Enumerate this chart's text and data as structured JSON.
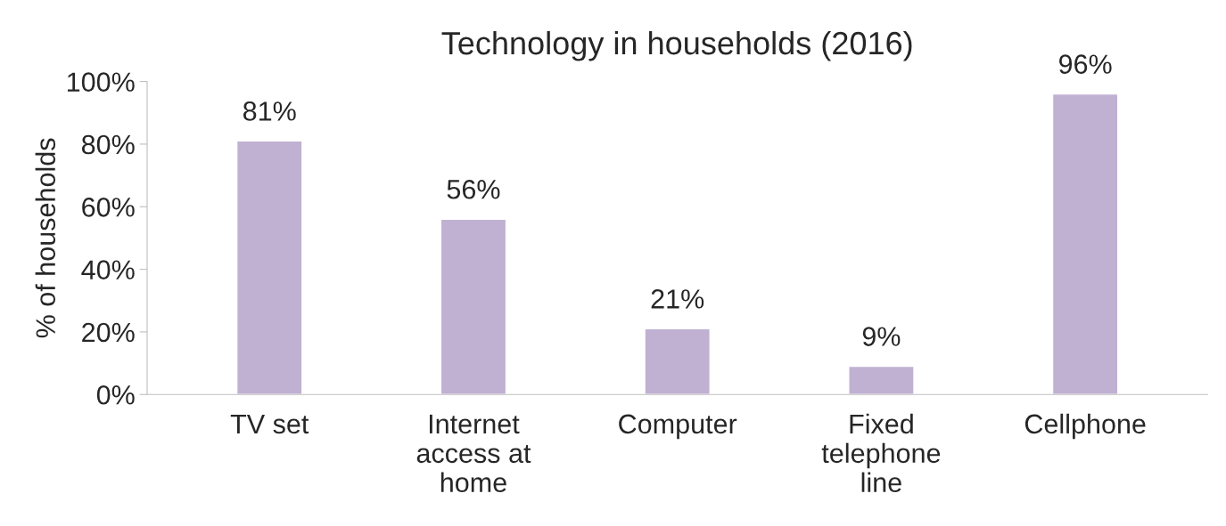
{
  "chart_data": {
    "type": "bar",
    "title": "Technology in households (2016)",
    "ylabel": "% of households",
    "categories": [
      "TV set",
      "Internet access at home",
      "Computer",
      "Fixed telephone line",
      "Cellphone"
    ],
    "values": [
      81,
      56,
      21,
      9,
      96
    ],
    "value_labels": [
      "81%",
      "56%",
      "21%",
      "9%",
      "96%"
    ],
    "color": "#c0b1d3",
    "ylim": [
      0,
      100
    ],
    "yticks": [
      {
        "value": 0,
        "label": "0%"
      },
      {
        "value": 20,
        "label": "20%"
      },
      {
        "value": 40,
        "label": "40%"
      },
      {
        "value": 60,
        "label": "60%"
      },
      {
        "value": 80,
        "label": "80%"
      },
      {
        "value": 100,
        "label": "100%"
      }
    ],
    "grid": false
  }
}
